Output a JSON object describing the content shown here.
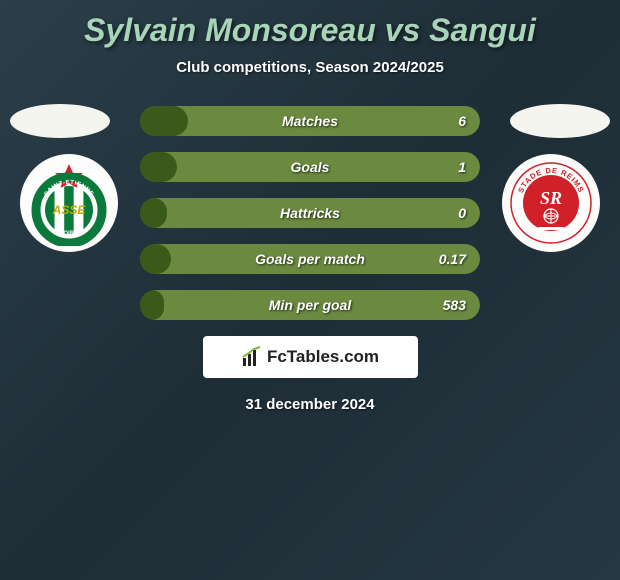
{
  "title": "Sylvain Monsoreau vs Sangui",
  "subtitle": "Club competitions, Season 2024/2025",
  "date": "31 december 2024",
  "brand": "FcTables.com",
  "bar_bg_color": "#6b8a3f",
  "bar_fill_color": "#3a5a1a",
  "stats": [
    {
      "label": "Matches",
      "value": "6",
      "fill_pct": 14
    },
    {
      "label": "Goals",
      "value": "1",
      "fill_pct": 11
    },
    {
      "label": "Hattricks",
      "value": "0",
      "fill_pct": 8
    },
    {
      "label": "Goals per match",
      "value": "0.17",
      "fill_pct": 9
    },
    {
      "label": "Min per goal",
      "value": "583",
      "fill_pct": 7
    }
  ],
  "left_club": {
    "bg": "#ffffff",
    "stripes": [
      "#0a7a3c",
      "#ffffff",
      "#0a7a3c",
      "#ffffff",
      "#0a7a3c"
    ],
    "ring": "#0a7a3c",
    "text_top": "SAINT-ETIENNE",
    "text_bottom": "LOIRE",
    "center": "ASSE"
  },
  "right_club": {
    "bg": "#ffffff",
    "ring": "#d02028",
    "inner": "#d02028",
    "text_top": "STADE DE REIMS",
    "center": "SR"
  }
}
